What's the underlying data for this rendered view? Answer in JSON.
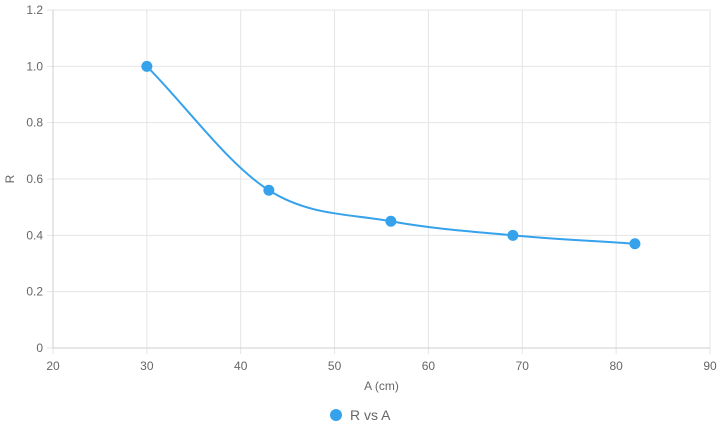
{
  "chart_data": {
    "type": "line",
    "x": [
      30,
      43,
      56,
      69,
      82
    ],
    "series": [
      {
        "name": "R vs A",
        "values": [
          1.0,
          0.56,
          0.45,
          0.4,
          0.37
        ]
      }
    ],
    "xlabel": "A (cm)",
    "ylabel": "R",
    "xlim": [
      20,
      90
    ],
    "ylim": [
      0,
      1.2
    ],
    "xticks": [
      "20",
      "30",
      "40",
      "50",
      "60",
      "70",
      "80",
      "90"
    ],
    "yticks": [
      "0",
      "0.2",
      "0.4",
      "0.6",
      "0.8",
      "1.0",
      "1.2"
    ],
    "grid": true,
    "legend_position": "bottom",
    "colors": {
      "series": "#36a2eb",
      "grid": "#e5e5e5",
      "text": "#666666"
    }
  }
}
